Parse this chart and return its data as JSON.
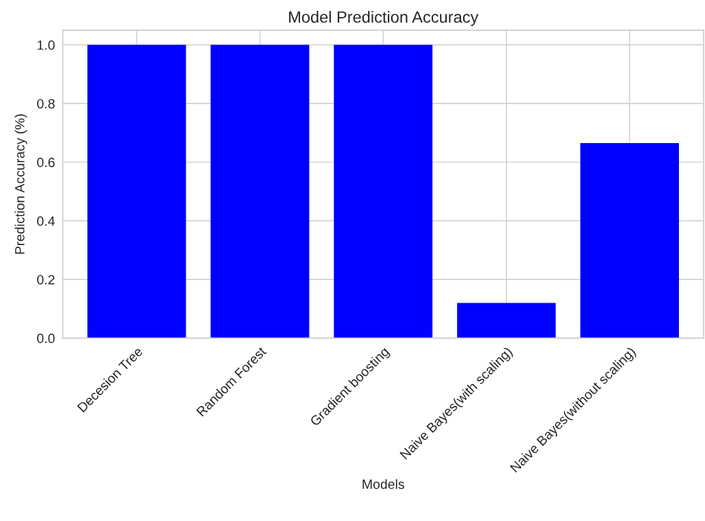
{
  "chart_data": {
    "type": "bar",
    "title": "Model Prediction Accuracy",
    "xlabel": "Models",
    "ylabel": "Prediction Accuracy (%)",
    "categories": [
      "Decesion Tree",
      "Random Forest",
      "Gradient boosting",
      "Naive Bayes(with scaling)",
      "Naive Bayes(without scaling)"
    ],
    "values": [
      1.0,
      1.0,
      1.0,
      0.12,
      0.665
    ],
    "color": "#0000ff",
    "ylim": [
      0,
      1.05
    ],
    "yticks": [
      {
        "value": 0,
        "label": "0.0"
      },
      {
        "value": 0.2,
        "label": "0.2"
      },
      {
        "value": 0.4,
        "label": "0.4"
      },
      {
        "value": 0.6,
        "label": "0.6"
      },
      {
        "value": 0.8,
        "label": "0.8"
      },
      {
        "value": 1.0,
        "label": "1.0"
      }
    ],
    "grid": true
  }
}
